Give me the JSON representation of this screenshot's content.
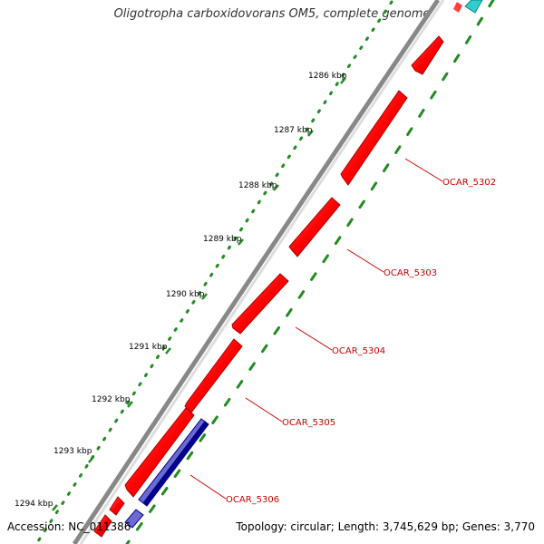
{
  "title": "Oligotropha carboxidovorans OM5, complete genome",
  "footer": {
    "accession": "Accession: NC_011386",
    "summary": "Topology: circular; Length: 3,745,629 bp; Genes: 3,770"
  },
  "ticks": [
    "1286 kbp",
    "1287 kbp",
    "1288 kbp",
    "1289 kbp",
    "1290 kbp",
    "1291 kbp",
    "1292 kbp",
    "1293 kbp",
    "1294 kbp"
  ],
  "genes": [
    "OCAR_5302",
    "OCAR_5303",
    "OCAR_5304",
    "OCAR_5305",
    "OCAR_5306"
  ],
  "colors": {
    "forward_cds": "#ff0000",
    "reverse_cds": "#00008b",
    "backbone": "#808080",
    "tick_dots": "#228b22",
    "gene_label": "#cc0000",
    "teal_feature": "#33cccc"
  }
}
